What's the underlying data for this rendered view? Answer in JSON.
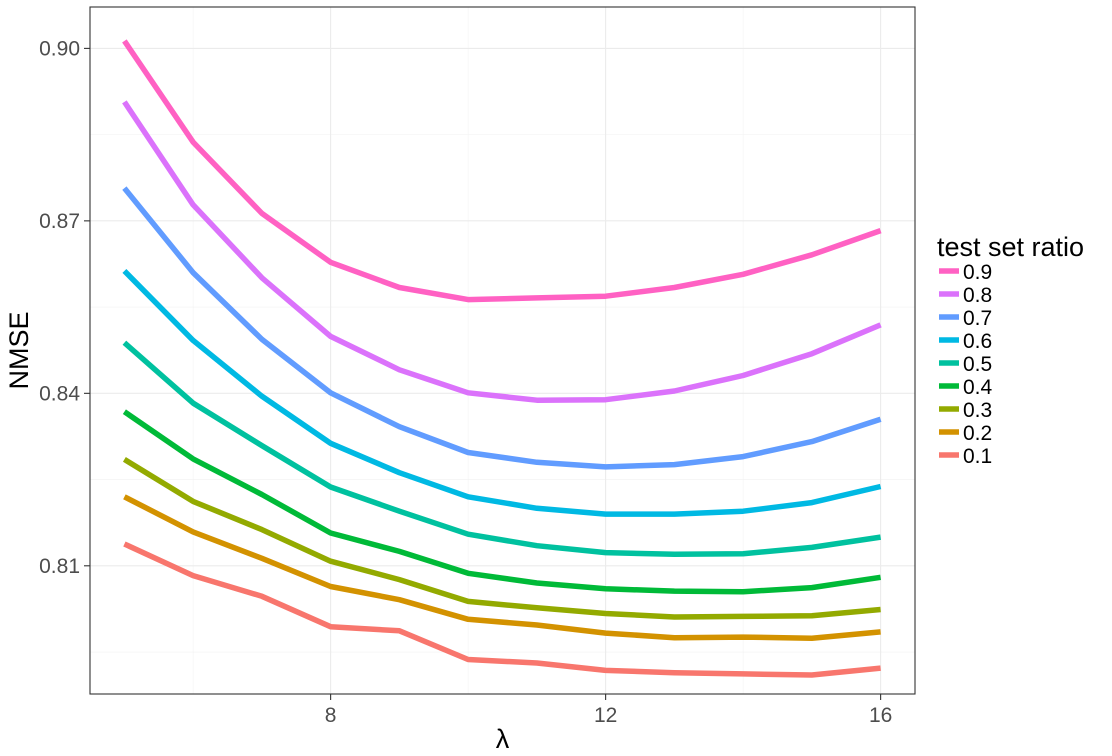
{
  "chart_data": {
    "type": "line",
    "title": "",
    "xlabel": "λ",
    "ylabel": "NMSE",
    "xlim": [
      4.5,
      16.5
    ],
    "ylim": [
      0.7877,
      0.9072
    ],
    "x_ticks": [
      8,
      12,
      16
    ],
    "y_ticks": [
      0.81,
      0.84,
      0.87,
      0.9
    ],
    "y_tick_labels": [
      "0.81",
      "0.84",
      "0.87",
      "0.90"
    ],
    "grid": true,
    "legend": {
      "title": "test set ratio",
      "position": "right"
    },
    "x": [
      5,
      6,
      7,
      8,
      9,
      10,
      11,
      12,
      13,
      14,
      15,
      16
    ],
    "series": [
      {
        "name": "0.9",
        "color": "#FF61C3",
        "values": [
          0.9013,
          0.8837,
          0.8713,
          0.8628,
          0.8584,
          0.8563,
          0.8566,
          0.8569,
          0.8584,
          0.8607,
          0.8641,
          0.8683
        ]
      },
      {
        "name": "0.8",
        "color": "#DB72FB",
        "values": [
          0.8907,
          0.8728,
          0.8601,
          0.8499,
          0.8441,
          0.8401,
          0.8388,
          0.8389,
          0.8404,
          0.8431,
          0.8469,
          0.8519
        ]
      },
      {
        "name": "0.7",
        "color": "#619CFF",
        "values": [
          0.8757,
          0.861,
          0.8494,
          0.8401,
          0.8342,
          0.8297,
          0.828,
          0.8272,
          0.8276,
          0.829,
          0.8316,
          0.8355
        ]
      },
      {
        "name": "0.6",
        "color": "#00B9E3",
        "values": [
          0.8613,
          0.8492,
          0.8395,
          0.8313,
          0.8262,
          0.822,
          0.82,
          0.819,
          0.819,
          0.8195,
          0.821,
          0.8238
        ]
      },
      {
        "name": "0.5",
        "color": "#00C19F",
        "values": [
          0.8488,
          0.8383,
          0.8309,
          0.8237,
          0.8195,
          0.8155,
          0.8135,
          0.8123,
          0.812,
          0.8121,
          0.8132,
          0.815
        ]
      },
      {
        "name": "0.4",
        "color": "#00BA38",
        "values": [
          0.8368,
          0.8286,
          0.8224,
          0.8157,
          0.8125,
          0.8087,
          0.807,
          0.806,
          0.8056,
          0.8055,
          0.8062,
          0.808
        ]
      },
      {
        "name": "0.3",
        "color": "#93AA00",
        "values": [
          0.8285,
          0.8212,
          0.8163,
          0.8108,
          0.8076,
          0.8038,
          0.8027,
          0.8017,
          0.8011,
          0.8012,
          0.8013,
          0.8024
        ]
      },
      {
        "name": "0.2",
        "color": "#D39200",
        "values": [
          0.822,
          0.8159,
          0.8113,
          0.8064,
          0.8041,
          0.8007,
          0.7997,
          0.7983,
          0.7975,
          0.7976,
          0.7974,
          0.7985
        ]
      },
      {
        "name": "0.1",
        "color": "#F8766D",
        "values": [
          0.8138,
          0.8083,
          0.8047,
          0.7994,
          0.7987,
          0.7937,
          0.7931,
          0.7918,
          0.7914,
          0.7912,
          0.791,
          0.7922
        ]
      }
    ]
  }
}
